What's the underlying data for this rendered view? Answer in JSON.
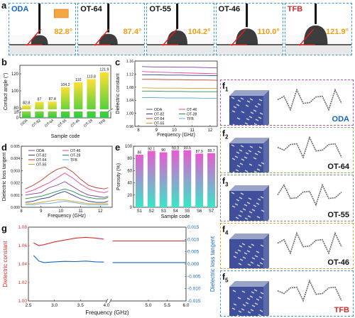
{
  "panel_labels": {
    "a": "a",
    "b": "b",
    "c": "c",
    "d": "d",
    "e": "e",
    "g": "g",
    "f": "f",
    "f_subs": [
      "1",
      "2",
      "3",
      "4",
      "5"
    ]
  },
  "panel_a": {
    "samples": [
      {
        "name": "ODA",
        "angle": "82.8°",
        "color": "#1565c0",
        "frame": "#3a9ad9"
      },
      {
        "name": "OT-64",
        "angle": "87.4°",
        "color": "#111111",
        "frame": "#3a9ad9"
      },
      {
        "name": "OT-55",
        "angle": "104.2°",
        "color": "#111111",
        "frame": "#3a9ad9"
      },
      {
        "name": "OT-46",
        "angle": "110.0°",
        "color": "#111111",
        "frame": "#3a9ad9"
      },
      {
        "name": "TFB",
        "angle": "121.9°",
        "color": "#d32f2f",
        "frame": "#3a9ad9"
      }
    ],
    "angle_color": "#f39c12"
  },
  "panel_f": {
    "rows": [
      {
        "label": "ODA",
        "color": "#1565c0",
        "frame": "#c04ac0"
      },
      {
        "label": "OT-64",
        "color": "#111111",
        "frame": "#7cbb4a"
      },
      {
        "label": "OT-55",
        "color": "#111111",
        "frame": "#8a8a8a"
      },
      {
        "label": "OT-46",
        "color": "#111111",
        "frame": "#e0a030"
      },
      {
        "label": "TFB",
        "color": "#d32f2f",
        "frame": "#3a9ad9"
      }
    ]
  },
  "chart_data": [
    {
      "id": "b",
      "type": "bar",
      "ylabel": "Contact angle (°)",
      "xlabel": "Sample code",
      "categories": [
        "ODA",
        "OT-82",
        "OT-64",
        "OT-55",
        "OT-46",
        "OT-28",
        "TFB"
      ],
      "values": [
        82.8,
        87,
        87.4,
        104.2,
        110,
        113.8,
        121.9
      ],
      "value_labels": [
        "82.8",
        "87",
        "87.4",
        "104.2",
        "110",
        "113.8",
        "121.9"
      ],
      "yticks": [
        "0",
        "10",
        "80",
        "100",
        "120"
      ],
      "axis_break": true
    },
    {
      "id": "c",
      "type": "line",
      "ylabel": "Dielectric constant",
      "xlabel": "Frequency (GHz)",
      "xlim": [
        7.8,
        12.4
      ],
      "ylim": [
        0.96,
        1.16
      ],
      "xticks": [
        "8",
        "9",
        "10",
        "11",
        "12"
      ],
      "yticks": [
        "0.96",
        "1.00",
        "1.04",
        "1.08",
        "1.12",
        "1.16"
      ],
      "series": [
        {
          "name": "ODA",
          "color": "#7b3fa0",
          "values": [
            1.143,
            1.142,
            1.142,
            1.141,
            1.141,
            1.14,
            1.139
          ]
        },
        {
          "name": "OT-82",
          "color": "#2a3d8f",
          "values": [
            1.118,
            1.118,
            1.117,
            1.117,
            1.116,
            1.116,
            1.115
          ]
        },
        {
          "name": "OT-64",
          "color": "#c0392b",
          "values": [
            1.104,
            1.104,
            1.103,
            1.103,
            1.102,
            1.102,
            1.101
          ]
        },
        {
          "name": "OT-55",
          "color": "#d4a017",
          "values": [
            1.078,
            1.077,
            1.077,
            1.077,
            1.076,
            1.076,
            1.076
          ]
        },
        {
          "name": "OT-46",
          "color": "#e84393",
          "values": [
            1.128,
            1.126,
            1.125,
            1.124,
            1.123,
            1.122,
            1.121
          ]
        },
        {
          "name": "OT-28",
          "color": "#2e8b57",
          "values": [
            1.068,
            1.068,
            1.067,
            1.067,
            1.066,
            1.066,
            1.066
          ]
        },
        {
          "name": "TFB",
          "color": "#5dade2",
          "values": [
            1.048,
            1.048,
            1.047,
            1.047,
            1.047,
            1.046,
            1.046
          ]
        }
      ],
      "x": [
        8.2,
        8.9,
        9.6,
        10.3,
        11.0,
        11.7,
        12.4
      ]
    },
    {
      "id": "d",
      "type": "line",
      "ylabel": "Dielectric loss tangent",
      "xlabel": "Frequency (GHz)",
      "xlim": [
        8,
        12.6
      ],
      "ylim": [
        0,
        0.005
      ],
      "xticks": [
        "8",
        "9",
        "10",
        "11",
        "12"
      ],
      "yticks": [
        "0.000",
        "0.001",
        "0.002",
        "0.003",
        "0.004",
        "0.005"
      ],
      "x": [
        8.2,
        8.6,
        9.0,
        9.4,
        9.8,
        10.2,
        10.6,
        11.0,
        11.4,
        11.8,
        12.2,
        12.4
      ],
      "series": [
        {
          "name": "ODA",
          "color": "#7b3fa0",
          "values": [
            0.001,
            0.0011,
            0.0012,
            0.0016,
            0.0018,
            0.0021,
            0.0017,
            0.0013,
            0.001,
            0.0009,
            0.0008,
            0.0009
          ]
        },
        {
          "name": "OT-82",
          "color": "#2a3d8f",
          "values": [
            0.0004,
            0.0005,
            0.0007,
            0.0008,
            0.0011,
            0.0013,
            0.001,
            0.0007,
            0.0005,
            0.0004,
            0.0004,
            0.0005
          ]
        },
        {
          "name": "OT-64",
          "color": "#c0392b",
          "values": [
            0.0015,
            0.0018,
            0.0022,
            0.0027,
            0.0031,
            0.0033,
            0.0029,
            0.0023,
            0.0018,
            0.0016,
            0.0015,
            0.0016
          ]
        },
        {
          "name": "OT-55",
          "color": "#d4a017",
          "values": [
            0.0003,
            0.0003,
            0.0004,
            0.0005,
            0.0006,
            0.0006,
            0.0005,
            0.0004,
            0.0003,
            0.0003,
            0.0003,
            0.0003
          ]
        },
        {
          "name": "OT-46",
          "color": "#e84393",
          "values": [
            0.0012,
            0.0014,
            0.0017,
            0.002,
            0.0024,
            0.0028,
            0.0024,
            0.0019,
            0.0015,
            0.0013,
            0.0012,
            0.0013
          ]
        },
        {
          "name": "OT-28",
          "color": "#2e8b57",
          "values": [
            0.0007,
            0.0008,
            0.0009,
            0.0011,
            0.0013,
            0.0015,
            0.0013,
            0.001,
            0.0008,
            0.0007,
            0.0007,
            0.0008
          ]
        },
        {
          "name": "TFB",
          "color": "#5dade2",
          "values": [
            0.0002,
            0.0002,
            0.0003,
            0.0003,
            0.0004,
            0.0005,
            0.0004,
            0.0003,
            0.0002,
            0.0002,
            0.0002,
            0.0002
          ]
        }
      ]
    },
    {
      "id": "e",
      "type": "bar",
      "ylabel": "Porosity (%)",
      "xlabel": "Sample code",
      "ylim": [
        0,
        100
      ],
      "yticks": [
        "0",
        "20",
        "40",
        "60",
        "80",
        "100"
      ],
      "categories": [
        "S1",
        "S2",
        "S3",
        "S4",
        "S5",
        "S6",
        "S7"
      ],
      "values": [
        86,
        92.1,
        90,
        93.3,
        93.5,
        87.9,
        88.7
      ],
      "value_labels": [
        "86",
        "92.1",
        "90",
        "93.3",
        "93.5",
        "87.9",
        "88.7"
      ]
    },
    {
      "id": "g",
      "type": "line",
      "xlabel": "Frequency (GHz)",
      "ylabel_left": "Dielectric constant",
      "ylabel_right": "Dielectric loss tangent",
      "left_color": "#d32f2f",
      "right_color": "#1565c0",
      "xticks": [
        "2.5",
        "3.0",
        "3.5",
        "4.0",
        "5.0",
        "5.5",
        "6.0"
      ],
      "yticks_left": [
        "1.00",
        "1.02",
        "1.04",
        "1.06",
        "1.08"
      ],
      "yticks_right": [
        "-0.015",
        "-0.010",
        "-0.005",
        "0.000",
        "0.005",
        "0.010",
        "0.015"
      ],
      "ylim_left": [
        1.0,
        1.08
      ],
      "ylim_right": [
        -0.015,
        0.015
      ],
      "axis_break": true,
      "segment1_x": [
        2.6,
        2.7,
        2.8,
        3.0,
        3.2,
        3.4,
        3.6,
        3.8,
        3.95
      ],
      "segment1_constant": [
        1.063,
        1.06,
        1.061,
        1.064,
        1.066,
        1.068,
        1.069,
        1.068,
        1.067
      ],
      "segment1_loss": [
        0.0035,
        0.0012,
        0.0006,
        0.0009,
        0.0011,
        0.001,
        0.0012,
        0.0009,
        0.0008
      ],
      "segment2_x": [
        4.05,
        4.5,
        5.0,
        5.5,
        6.0
      ],
      "segment2_constant": [
        1.065,
        1.065,
        1.065,
        1.065,
        1.065
      ],
      "segment2_loss": [
        0.0006,
        0.0006,
        0.0006,
        0.0006,
        0.0006
      ]
    }
  ]
}
